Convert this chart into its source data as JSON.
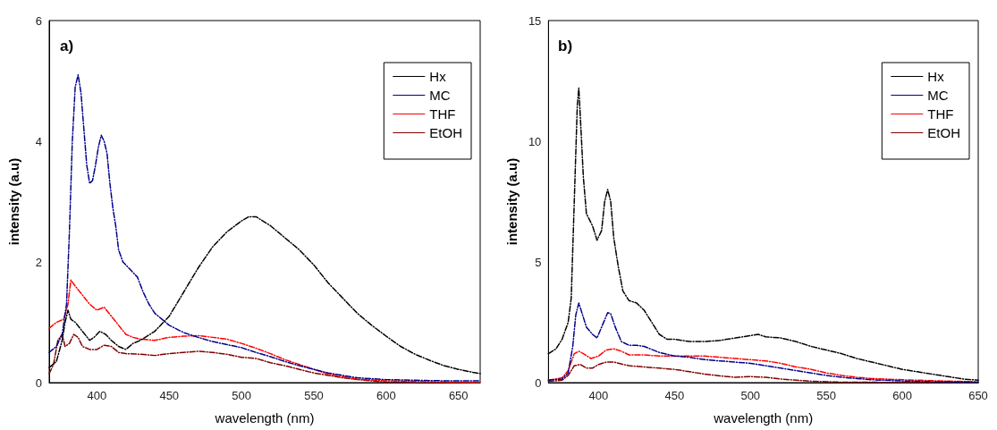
{
  "chart_data": [
    {
      "type": "line",
      "title": "a)",
      "xlabel": "wavelength (nm)",
      "ylabel": "intensity (a.u)",
      "xlim": [
        367,
        665
      ],
      "xticks": [
        400,
        450,
        500,
        550,
        600,
        650
      ],
      "ylim": [
        0,
        6
      ],
      "yticks": [
        0,
        2,
        4,
        6
      ],
      "grid": false,
      "legend": "top right",
      "marker": "none",
      "line_style": "dashed",
      "series": [
        {
          "name": "Hx",
          "color": "#000000",
          "x": [
            367,
            372,
            376,
            378,
            380,
            382,
            385,
            390,
            395,
            398,
            402,
            406,
            410,
            415,
            420,
            425,
            430,
            440,
            450,
            460,
            470,
            480,
            490,
            500,
            505,
            510,
            520,
            530,
            540,
            550,
            560,
            570,
            580,
            590,
            600,
            610,
            620,
            630,
            640,
            650,
            660,
            665
          ],
          "values": [
            0.25,
            0.35,
            0.7,
            1.0,
            1.2,
            1.05,
            1.0,
            0.85,
            0.7,
            0.75,
            0.85,
            0.8,
            0.7,
            0.6,
            0.55,
            0.65,
            0.7,
            0.85,
            1.1,
            1.5,
            1.9,
            2.25,
            2.5,
            2.68,
            2.75,
            2.75,
            2.6,
            2.4,
            2.2,
            1.95,
            1.65,
            1.4,
            1.15,
            0.95,
            0.77,
            0.6,
            0.47,
            0.37,
            0.28,
            0.22,
            0.17,
            0.15
          ]
        },
        {
          "name": "MC",
          "color": "#00008b",
          "x": [
            367,
            372,
            376,
            379,
            381,
            383,
            385,
            387,
            389,
            391,
            393,
            395,
            397,
            399,
            401,
            403,
            405,
            407,
            409,
            411,
            413,
            415,
            418,
            422,
            428,
            432,
            436,
            440,
            445,
            450,
            460,
            470,
            480,
            490,
            500,
            510,
            520,
            530,
            540,
            550,
            560,
            570,
            580,
            600,
            620,
            640,
            665
          ],
          "values": [
            0.5,
            0.6,
            0.8,
            1.3,
            2.5,
            4.0,
            4.9,
            5.1,
            4.8,
            4.2,
            3.6,
            3.3,
            3.35,
            3.6,
            3.9,
            4.1,
            4.0,
            3.8,
            3.3,
            2.9,
            2.6,
            2.2,
            2.0,
            1.9,
            1.75,
            1.5,
            1.3,
            1.15,
            1.05,
            0.95,
            0.83,
            0.75,
            0.68,
            0.63,
            0.58,
            0.5,
            0.43,
            0.35,
            0.28,
            0.22,
            0.16,
            0.12,
            0.08,
            0.05,
            0.04,
            0.03,
            0.03
          ]
        },
        {
          "name": "THF",
          "color": "#ff0000",
          "x": [
            367,
            372,
            377,
            380,
            382,
            385,
            390,
            395,
            400,
            405,
            410,
            415,
            420,
            425,
            430,
            440,
            450,
            460,
            470,
            480,
            490,
            500,
            510,
            520,
            530,
            540,
            550,
            560,
            570,
            580,
            600,
            620,
            640,
            665
          ],
          "values": [
            0.9,
            1.0,
            1.05,
            1.3,
            1.7,
            1.6,
            1.45,
            1.3,
            1.2,
            1.25,
            1.1,
            0.95,
            0.8,
            0.75,
            0.72,
            0.7,
            0.75,
            0.77,
            0.78,
            0.75,
            0.72,
            0.65,
            0.57,
            0.48,
            0.38,
            0.3,
            0.22,
            0.14,
            0.1,
            0.06,
            0.03,
            0.02,
            0.01,
            0.0
          ]
        },
        {
          "name": "EtOH",
          "color": "#800000",
          "x": [
            367,
            370,
            373,
            376,
            378,
            381,
            384,
            387,
            390,
            395,
            400,
            405,
            410,
            415,
            420,
            430,
            440,
            450,
            460,
            470,
            480,
            490,
            500,
            510,
            520,
            530,
            540,
            550,
            560,
            570,
            580,
            600,
            620
          ],
          "values": [
            0.15,
            0.3,
            0.7,
            0.8,
            0.6,
            0.65,
            0.8,
            0.75,
            0.6,
            0.55,
            0.55,
            0.62,
            0.6,
            0.5,
            0.48,
            0.47,
            0.45,
            0.48,
            0.5,
            0.52,
            0.5,
            0.47,
            0.42,
            0.4,
            0.33,
            0.28,
            0.22,
            0.16,
            0.12,
            0.08,
            0.05,
            0.01,
            0.0
          ]
        }
      ]
    },
    {
      "type": "line",
      "title": "b)",
      "xlabel": "wavelength (nm)",
      "ylabel": "intensity (a.u)",
      "xlim": [
        367,
        650
      ],
      "xticks": [
        400,
        450,
        500,
        550,
        600,
        650
      ],
      "ylim": [
        0,
        15
      ],
      "yticks": [
        0,
        5,
        10,
        15
      ],
      "grid": false,
      "legend": "top right",
      "marker": "none",
      "line_style": "dashed",
      "series": [
        {
          "name": "Hx",
          "color": "#000000",
          "x": [
            367,
            372,
            376,
            380,
            382,
            384,
            386,
            387,
            388,
            390,
            392,
            396,
            399,
            402,
            404,
            406,
            408,
            410,
            413,
            416,
            420,
            425,
            430,
            435,
            440,
            445,
            450,
            460,
            470,
            480,
            490,
            500,
            505,
            510,
            520,
            530,
            540,
            550,
            560,
            570,
            580,
            590,
            600,
            610,
            620,
            630,
            640,
            650
          ],
          "values": [
            1.2,
            1.4,
            1.8,
            2.5,
            3.5,
            7.5,
            11.5,
            12.2,
            11.0,
            8.5,
            7.0,
            6.5,
            5.9,
            6.3,
            7.5,
            8.0,
            7.5,
            6.0,
            4.8,
            3.8,
            3.4,
            3.3,
            3.0,
            2.5,
            2.0,
            1.8,
            1.8,
            1.7,
            1.7,
            1.75,
            1.85,
            1.95,
            2.0,
            1.9,
            1.85,
            1.7,
            1.5,
            1.35,
            1.2,
            1.0,
            0.85,
            0.7,
            0.55,
            0.45,
            0.35,
            0.25,
            0.15,
            0.1
          ]
        },
        {
          "name": "MC",
          "color": "#00008b",
          "x": [
            367,
            376,
            380,
            383,
            385,
            387,
            389,
            392,
            396,
            399,
            402,
            406,
            408,
            411,
            415,
            420,
            425,
            430,
            440,
            450,
            460,
            470,
            480,
            490,
            500,
            510,
            520,
            530,
            540,
            550,
            560,
            570,
            580,
            600,
            620,
            650
          ],
          "values": [
            0.1,
            0.15,
            0.4,
            1.5,
            2.8,
            3.3,
            2.9,
            2.3,
            2.0,
            1.85,
            2.3,
            2.9,
            2.85,
            2.3,
            1.7,
            1.55,
            1.55,
            1.5,
            1.25,
            1.1,
            1.05,
            0.95,
            0.9,
            0.85,
            0.8,
            0.7,
            0.6,
            0.5,
            0.4,
            0.3,
            0.22,
            0.17,
            0.12,
            0.07,
            0.04,
            0.02
          ]
        },
        {
          "name": "THF",
          "color": "#ff0000",
          "x": [
            367,
            376,
            380,
            384,
            387,
            390,
            395,
            400,
            405,
            410,
            415,
            420,
            430,
            440,
            450,
            460,
            470,
            480,
            490,
            500,
            510,
            520,
            530,
            540,
            550,
            560,
            570,
            580,
            600,
            620,
            650
          ],
          "values": [
            0.1,
            0.2,
            0.5,
            1.2,
            1.3,
            1.2,
            1.0,
            1.1,
            1.35,
            1.4,
            1.3,
            1.15,
            1.15,
            1.1,
            1.1,
            1.1,
            1.1,
            1.05,
            1.0,
            0.95,
            0.9,
            0.8,
            0.65,
            0.55,
            0.4,
            0.3,
            0.22,
            0.17,
            0.12,
            0.08,
            0.03
          ]
        },
        {
          "name": "EtOH",
          "color": "#800000",
          "x": [
            367,
            376,
            380,
            384,
            388,
            392,
            396,
            400,
            405,
            410,
            420,
            430,
            440,
            450,
            460,
            470,
            480,
            490,
            500,
            510,
            520,
            530,
            540,
            560,
            600,
            650
          ],
          "values": [
            0.05,
            0.1,
            0.3,
            0.7,
            0.75,
            0.6,
            0.6,
            0.75,
            0.85,
            0.85,
            0.7,
            0.65,
            0.6,
            0.55,
            0.45,
            0.35,
            0.28,
            0.22,
            0.25,
            0.22,
            0.15,
            0.1,
            0.06,
            0.02,
            0.01,
            0.0
          ]
        }
      ]
    }
  ]
}
